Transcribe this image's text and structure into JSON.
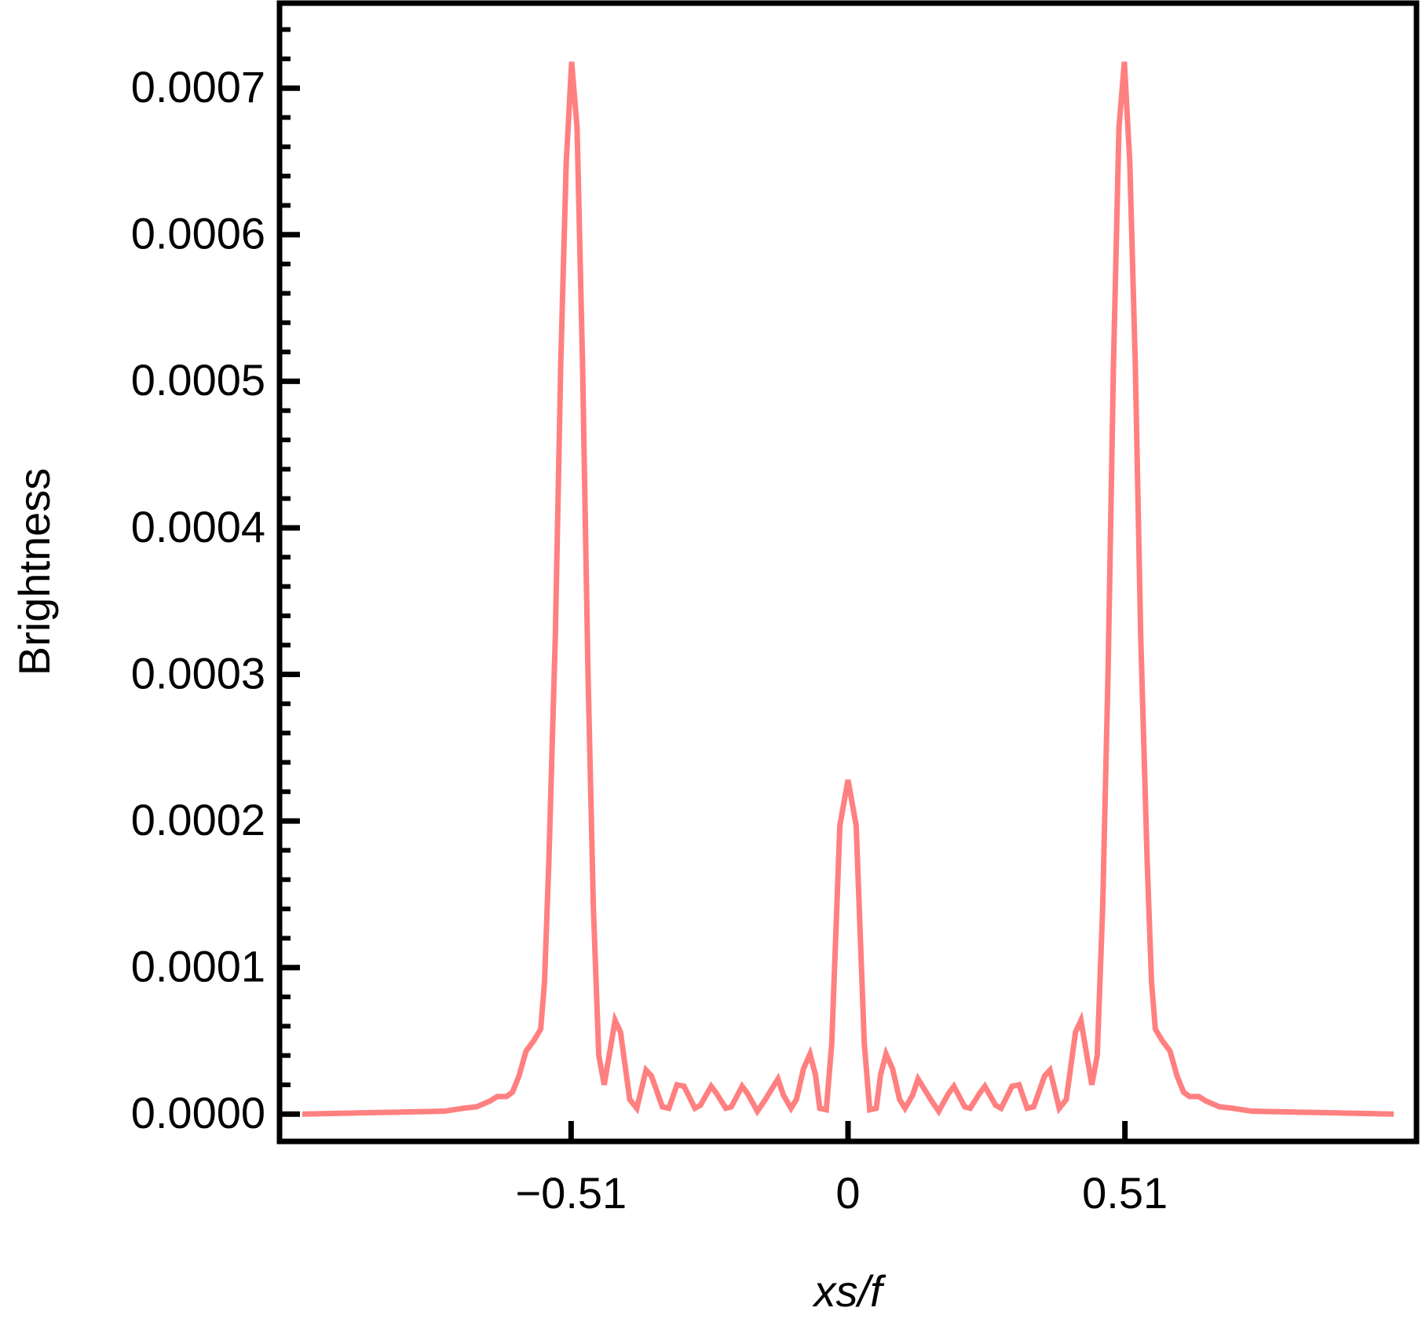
{
  "chart_data": {
    "type": "line",
    "x_label": "xs/f",
    "y_label": "Brightness",
    "color": "#ff8080",
    "xlim": [
      -1.047,
      1.047
    ],
    "ylim": [
      -1.86e-05,
      0.000758
    ],
    "xticks": [
      {
        "value": -0.51,
        "label": "−0.51"
      },
      0,
      0.51
    ],
    "yticks": [
      {
        "value": 0,
        "label": "0.0000"
      },
      {
        "value": 0.0001,
        "label": "0.0001"
      },
      {
        "value": 0.0002,
        "label": "0.0002"
      },
      {
        "value": 0.0003,
        "label": "0.0003"
      },
      {
        "value": 0.0004,
        "label": "0.0004"
      },
      {
        "value": 0.0005,
        "label": "0.0005"
      },
      {
        "value": 0.0006,
        "label": "0.0006"
      },
      {
        "value": 0.0007,
        "label": "0.0007"
      }
    ],
    "x": [
      -1.005,
      -0.876,
      -0.743,
      -0.709,
      -0.684,
      -0.659,
      -0.646,
      -0.629,
      -0.618,
      -0.606,
      -0.593,
      -0.579,
      -0.566,
      -0.559,
      -0.551,
      -0.539,
      -0.529,
      -0.519,
      -0.509,
      -0.499,
      -0.489,
      -0.479,
      -0.469,
      -0.459,
      -0.449,
      -0.429,
      -0.419,
      -0.402,
      -0.389,
      -0.372,
      -0.362,
      -0.342,
      -0.33,
      -0.315,
      -0.302,
      -0.282,
      -0.272,
      -0.252,
      -0.242,
      -0.225,
      -0.215,
      -0.195,
      -0.185,
      -0.167,
      -0.154,
      -0.129,
      -0.119,
      -0.105,
      -0.095,
      -0.082,
      -0.07,
      -0.06,
      -0.052,
      -0.04,
      -0.03,
      -0.015,
      0,
      0.015,
      0.03,
      0.04,
      0.052,
      0.06,
      0.07,
      0.082,
      0.095,
      0.105,
      0.119,
      0.129,
      0.154,
      0.167,
      0.185,
      0.195,
      0.215,
      0.225,
      0.242,
      0.252,
      0.272,
      0.282,
      0.302,
      0.315,
      0.33,
      0.342,
      0.362,
      0.372,
      0.389,
      0.402,
      0.419,
      0.429,
      0.449,
      0.459,
      0.469,
      0.479,
      0.489,
      0.499,
      0.509,
      0.519,
      0.529,
      0.539,
      0.551,
      0.559,
      0.566,
      0.579,
      0.593,
      0.606,
      0.618,
      0.629,
      0.646,
      0.659,
      0.684,
      0.709,
      0.743,
      0.876,
      1.005
    ],
    "values": [
      0,
      1e-06,
      2e-06,
      4e-06,
      5e-06,
      9e-06,
      1.2e-05,
      1.2e-05,
      1.5e-05,
      2.6e-05,
      4.3e-05,
      5e-05,
      5.8e-05,
      9e-05,
      0.000172,
      0.000327,
      0.000513,
      0.000649,
      0.000718,
      0.000673,
      0.000513,
      0.000303,
      0.000141,
      4e-05,
      2e-05,
      6.4e-05,
      5.6e-05,
      1e-05,
      4e-06,
      3e-05,
      2.6e-05,
      5e-06,
      4e-06,
      2e-05,
      1.9e-05,
      4e-06,
      6e-06,
      1.9e-05,
      1.4e-05,
      4e-06,
      5e-06,
      1.9e-05,
      1.4e-05,
      2e-06,
      9e-06,
      2.4e-05,
      1.3e-05,
      4e-06,
      1e-05,
      3.1e-05,
      4.1e-05,
      2.7e-05,
      4e-06,
      3e-06,
      4.8e-05,
      0.000197,
      0.000228,
      0.000197,
      4.8e-05,
      3e-06,
      4e-06,
      2.7e-05,
      4.1e-05,
      3.1e-05,
      1e-05,
      4e-06,
      1.3e-05,
      2.4e-05,
      9e-06,
      2e-06,
      1.4e-05,
      1.9e-05,
      5e-06,
      4e-06,
      1.4e-05,
      1.9e-05,
      6e-06,
      4e-06,
      1.9e-05,
      2e-05,
      4e-06,
      5e-06,
      2.6e-05,
      3e-05,
      4e-06,
      1e-05,
      5.6e-05,
      6.4e-05,
      2e-05,
      4e-05,
      0.000141,
      0.000303,
      0.000513,
      0.000673,
      0.000718,
      0.000649,
      0.000513,
      0.000327,
      0.000172,
      9e-05,
      5.8e-05,
      5e-05,
      4.3e-05,
      2.6e-05,
      1.5e-05,
      1.2e-05,
      1.2e-05,
      9e-06,
      5e-06,
      4e-06,
      2e-06,
      1e-06,
      0
    ]
  }
}
